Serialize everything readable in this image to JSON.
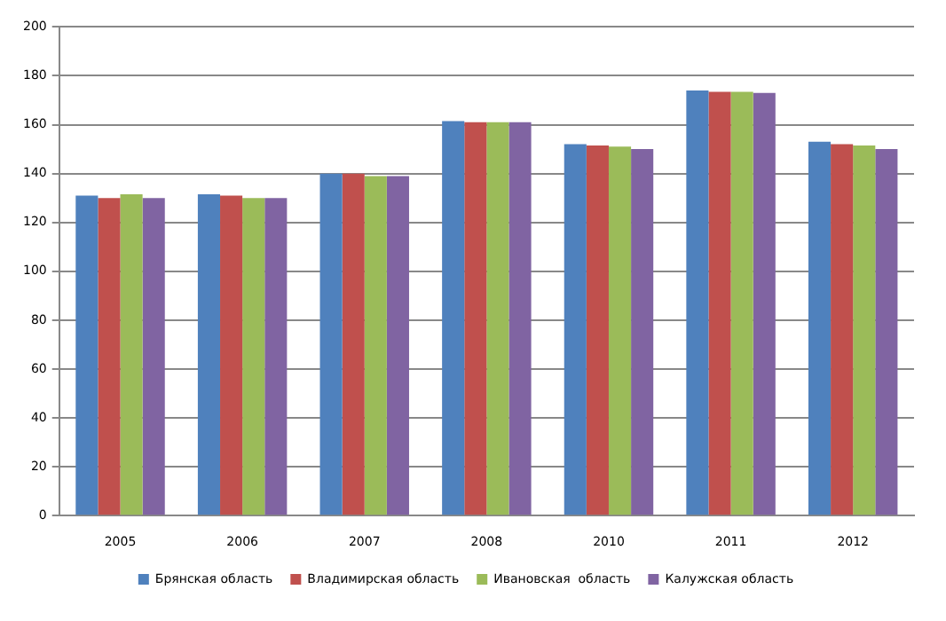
{
  "chart_data": {
    "type": "bar",
    "categories": [
      "2005",
      "2006",
      "2007",
      "2008",
      "2010",
      "2011",
      "2012"
    ],
    "series": [
      {
        "name": "Брянская область",
        "color": "#4f81bd",
        "values": [
          131,
          131.5,
          140,
          161.5,
          152,
          174,
          153
        ]
      },
      {
        "name": "Владимирская область",
        "color": "#c0504d",
        "values": [
          130,
          131,
          140,
          161,
          151.5,
          173.5,
          152
        ]
      },
      {
        "name": "Ивановская  область",
        "color": "#9bbb59",
        "values": [
          131.5,
          130,
          139,
          161,
          151,
          173.5,
          151.5
        ]
      },
      {
        "name": "Калужская область",
        "color": "#8064a2",
        "values": [
          130,
          130,
          139,
          161,
          150,
          173,
          150
        ]
      }
    ],
    "ylim": [
      0,
      200
    ],
    "yticks": [
      0,
      20,
      40,
      60,
      80,
      100,
      120,
      140,
      160,
      180,
      200
    ],
    "grid": "y",
    "legend": "bottom"
  }
}
